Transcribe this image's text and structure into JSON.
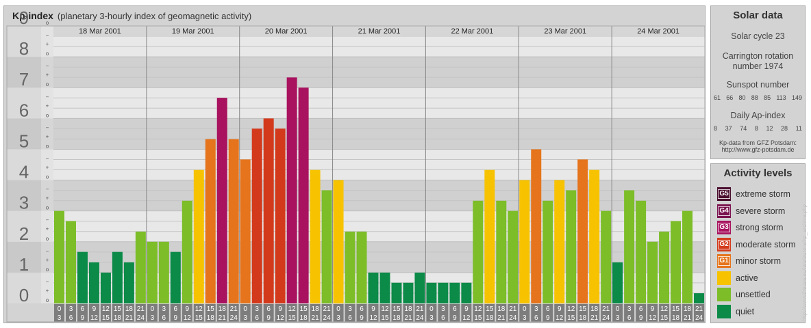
{
  "header": {
    "title": "Kp-index",
    "subtitle": "(planetary 3-hourly index of geomagnetic activity)"
  },
  "solar": {
    "title": "Solar data",
    "cycle": "Solar cycle 23",
    "carrington_line1": "Carrington rotation",
    "carrington_line2": "number 1974",
    "sunspot_title": "Sunspot number",
    "sunspot_values": [
      "61",
      "66",
      "80",
      "88",
      "85",
      "113",
      "149"
    ],
    "ap_title": "Daily Ap-index",
    "ap_values": [
      "8",
      "37",
      "74",
      "8",
      "12",
      "28",
      "11"
    ],
    "source_line1": "Kp-data from GFZ Potsdam:",
    "source_line2": "http://www.gfz-potsdam.de"
  },
  "activity": {
    "title": "Activity levels",
    "levels": [
      {
        "badge": "G5",
        "label": "extreme storm",
        "color": "#4a0e2e"
      },
      {
        "badge": "G4",
        "label": "severe storm",
        "color": "#7b1450"
      },
      {
        "badge": "G3",
        "label": "strong storm",
        "color": "#a8125e"
      },
      {
        "badge": "G2",
        "label": "moderate storm",
        "color": "#d33a1c"
      },
      {
        "badge": "G1",
        "label": "minor storm",
        "color": "#e5741c"
      },
      {
        "badge": "",
        "label": "active",
        "color": "#f7c300"
      },
      {
        "badge": "",
        "label": "unsettled",
        "color": "#7cbd28"
      },
      {
        "badge": "",
        "label": "quiet",
        "color": "#0b8a48"
      }
    ]
  },
  "watermark": "http://www.theusa.eu/lars/aurora/kp_archive.php",
  "chart_data": {
    "type": "bar",
    "title": "Kp-index",
    "subtitle": "(planetary 3-hourly index of geomagnetic activity)",
    "ylim": [
      0,
      9
    ],
    "y_ticks": [
      "0",
      "1",
      "2",
      "3",
      "4",
      "5",
      "6",
      "7",
      "8",
      "9"
    ],
    "y_minor_labels": [
      "o",
      "+",
      "−"
    ],
    "days": [
      "18 Mar 2001",
      "19 Mar 2001",
      "20 Mar 2001",
      "21 Mar 2001",
      "22 Mar 2001",
      "23 Mar 2001",
      "24 Mar 2001"
    ],
    "interval_starts": [
      "0",
      "3",
      "6",
      "9",
      "12",
      "15",
      "18",
      "21"
    ],
    "interval_ends": [
      "3",
      "6",
      "9",
      "12",
      "15",
      "18",
      "21",
      "24"
    ],
    "values": [
      3,
      2.67,
      1.67,
      1.33,
      1,
      1.67,
      1.33,
      2.33,
      2,
      2,
      1.67,
      3.33,
      4.33,
      5.33,
      6.67,
      5.33,
      4.67,
      5.67,
      6,
      5.67,
      7.33,
      7,
      4.33,
      3.67,
      4,
      2.33,
      2.33,
      1,
      1,
      0.67,
      0.67,
      1,
      0.67,
      0.67,
      0.67,
      0.67,
      3.33,
      4.33,
      3.33,
      3,
      4,
      5,
      3.33,
      4,
      3.67,
      4.67,
      4.33,
      3,
      1.33,
      3.67,
      3.33,
      2,
      2.33,
      2.67,
      3,
      0.33
    ]
  }
}
